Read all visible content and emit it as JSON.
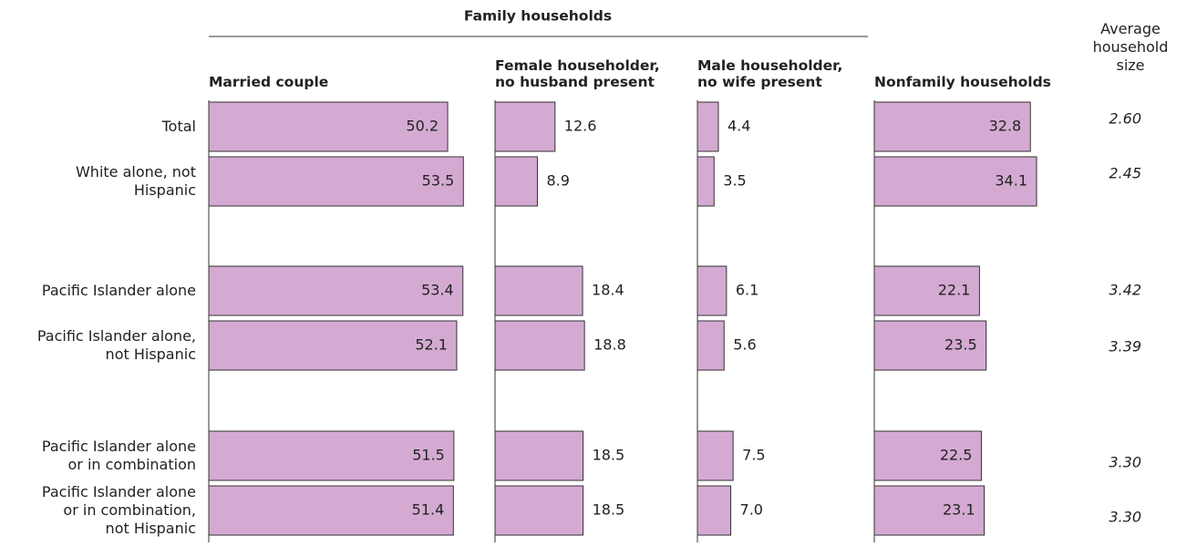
{
  "chart_data": {
    "type": "bar",
    "group_title": "Family households",
    "categories": [
      "Total",
      "White alone, not\nHispanic",
      "Pacific Islander alone",
      "Pacific Islander alone,\nnot Hispanic",
      "Pacific Islander alone\nor in combination",
      "Pacific Islander alone\nor in combination,\nnot Hispanic"
    ],
    "color": "#d4aad2",
    "series": [
      {
        "name": "Married couple",
        "label_position": "inside",
        "values": [
          50.2,
          53.5,
          53.4,
          52.1,
          51.5,
          51.4
        ]
      },
      {
        "name": "Female householder,\nno husband present",
        "label_position": "outside",
        "values": [
          12.6,
          8.9,
          18.4,
          18.8,
          18.5,
          18.5
        ]
      },
      {
        "name": "Male householder,\nno wife present",
        "label_position": "outside",
        "values": [
          4.4,
          3.5,
          6.1,
          5.6,
          7.5,
          7.0
        ],
        "value_labels": [
          "4.4",
          "3.5",
          "6.1",
          "5.6",
          "7.5",
          "7.0"
        ]
      },
      {
        "name": "Nonfamily households",
        "label_position": "inside",
        "values": [
          32.8,
          34.1,
          22.1,
          23.5,
          22.5,
          23.1
        ]
      }
    ],
    "average_household_size": {
      "name": "Average\nhousehold\nsize",
      "values": [
        2.6,
        2.45,
        3.42,
        3.39,
        3.3,
        3.3
      ],
      "value_labels": [
        "2.60",
        "2.45",
        "3.42",
        "3.39",
        "3.30",
        "3.30"
      ]
    }
  }
}
